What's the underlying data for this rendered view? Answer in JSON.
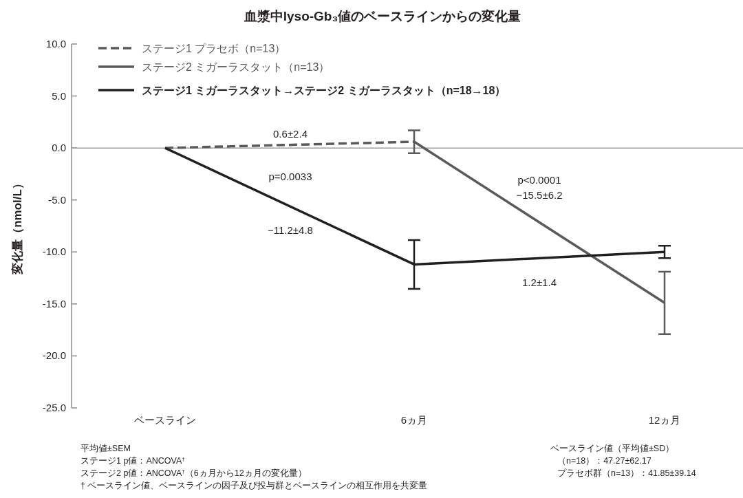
{
  "chart_data": {
    "type": "line",
    "title": "血漿中lyso-Gb₃値のベースラインからの変化量",
    "ylabel": "変化量（nmol/L）",
    "categories": [
      "ベースライン",
      "6ヵ月",
      "12ヵ月"
    ],
    "ylim": [
      -25,
      10
    ],
    "yticks": [
      {
        "value": 10,
        "label": "10.0"
      },
      {
        "value": 5,
        "label": "5.0"
      },
      {
        "value": 0,
        "label": "0.0"
      },
      {
        "value": -5,
        "label": "-5.0"
      },
      {
        "value": -10,
        "label": "-10.0"
      },
      {
        "value": -15,
        "label": "-15.0"
      },
      {
        "value": -20,
        "label": "-20.0"
      },
      {
        "value": -25,
        "label": "-25.0"
      }
    ],
    "series": [
      {
        "name": "ステージ1 プラセボ（n=13）",
        "color": "#5a5a5a",
        "line_style": "dashed",
        "values": [
          0,
          0.6,
          null
        ],
        "errors": [
          null,
          1.1,
          null
        ]
      },
      {
        "name": "ステージ2 ミガーラスタット（n=13）",
        "color": "#5a5a5a",
        "line_style": "solid",
        "values": [
          null,
          0.6,
          -14.9
        ],
        "errors": [
          null,
          null,
          3.0
        ]
      },
      {
        "name": "ステージ1 ミガーラスタット→ステージ2 ミガーラスタット（n=18→18）",
        "color": "#231f20",
        "line_style": "solid",
        "values": [
          0,
          -11.2,
          -10.0
        ],
        "errors": [
          null,
          2.35,
          0.6
        ]
      }
    ],
    "ref_lines": [
      {
        "axis": "y",
        "value": 0,
        "color": "#9a9a9a"
      }
    ],
    "legend": "top left",
    "grid": false,
    "marker": "none",
    "annotations": [
      "0.6±2.4",
      "p=0.0033",
      "−11.2±4.8",
      "p<0.0001",
      "−15.5±6.2",
      "1.2±1.4",
      "平均値±SEM",
      "ステージ1 p値：ANCOVA$^{†}$",
      "ステージ2 p値：ANCOVA$^{†}$（6ヵ月から12ヵ月の変化量）",
      "† ベースライン値、ベースラインの因子及び投与群とベースラインの相互作用を共変量",
      "ベースライン値（平均値±SD）",
      "（n=18）：47.27±62.17",
      "プラセボ群（n=13）：41.85±39.14"
    ]
  }
}
